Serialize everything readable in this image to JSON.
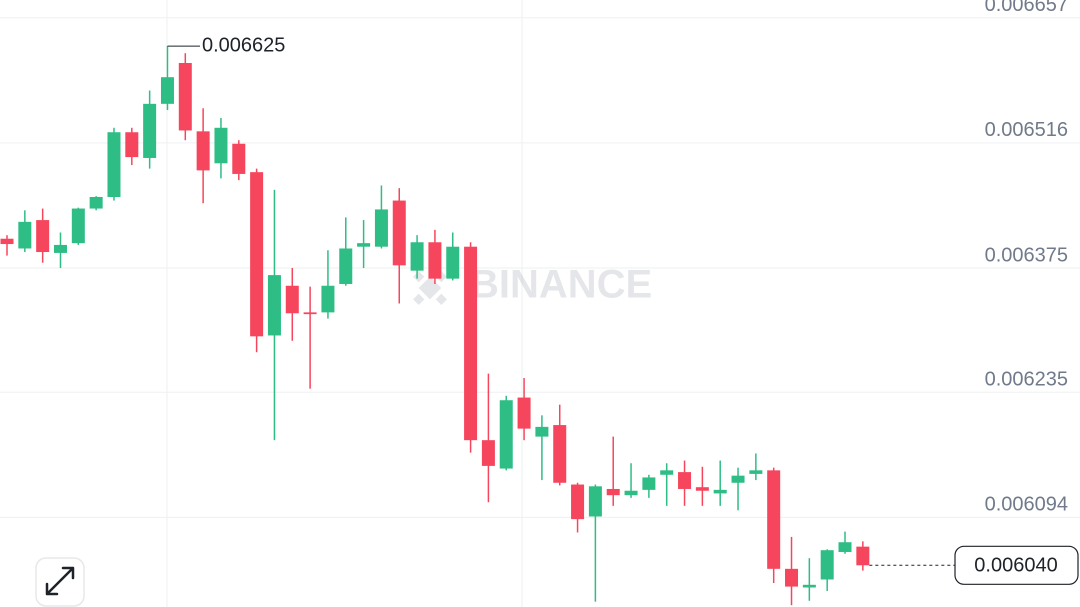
{
  "chart_data": {
    "type": "candlestick",
    "watermark": "BINANCE",
    "up_color": "#2ebd85",
    "down_color": "#f6465d",
    "open": [
      0.006408,
      0.006397,
      0.006429,
      0.006392,
      0.006403,
      0.006442,
      0.006455,
      0.006528,
      0.006499,
      0.00656,
      0.006606,
      0.006529,
      0.006493,
      0.006515,
      0.006483,
      0.006299,
      0.006355,
      0.006325,
      0.006325,
      0.006357,
      0.006399,
      0.006399,
      0.006451,
      0.006372,
      0.006404,
      0.006363,
      0.006399,
      0.006181,
      0.006149,
      0.006229,
      0.006185,
      0.006198,
      0.006131,
      0.006095,
      0.006126,
      0.006119,
      0.006125,
      0.006142,
      0.006145,
      0.006128,
      0.006121,
      0.006133,
      0.006143,
      0.006147,
      0.006036,
      0.006015,
      0.006024,
      0.006055,
      0.006061
    ],
    "high": [
      0.006412,
      0.00644,
      0.006442,
      0.006415,
      0.006443,
      0.006456,
      0.006533,
      0.006533,
      0.006575,
      0.006625,
      0.006617,
      0.006555,
      0.006544,
      0.006519,
      0.006487,
      0.006463,
      0.006375,
      0.006354,
      0.006395,
      0.006432,
      0.006429,
      0.006468,
      0.006465,
      0.006412,
      0.006418,
      0.006415,
      0.006404,
      0.006256,
      0.006231,
      0.006251,
      0.006209,
      0.006221,
      0.006133,
      0.006131,
      0.006185,
      0.006155,
      0.006142,
      0.006155,
      0.006158,
      0.006151,
      0.006158,
      0.00615,
      0.006166,
      0.00615,
      0.006072,
      0.006048,
      0.006058,
      0.006078,
      0.006067
    ],
    "low": [
      0.006389,
      0.006393,
      0.006381,
      0.006375,
      0.006401,
      0.00644,
      0.006451,
      0.006491,
      0.006487,
      0.006553,
      0.006519,
      0.006448,
      0.006476,
      0.006474,
      0.00628,
      0.006181,
      0.006293,
      0.006239,
      0.006318,
      0.006355,
      0.006375,
      0.006397,
      0.006335,
      0.006363,
      0.006357,
      0.006361,
      0.006167,
      0.006111,
      0.006147,
      0.006181,
      0.006136,
      0.00613,
      0.006077,
      0.005999,
      0.006107,
      0.006116,
      0.006116,
      0.006107,
      0.006107,
      0.006107,
      0.006107,
      0.006102,
      0.006136,
      0.00602,
      0.005995,
      0.006,
      0.006011,
      0.006053,
      0.006034
    ],
    "close": [
      0.006402,
      0.006427,
      0.006393,
      0.006401,
      0.006442,
      0.006455,
      0.006528,
      0.0065,
      0.00656,
      0.00659,
      0.00653,
      0.006485,
      0.006533,
      0.006481,
      0.006298,
      0.006367,
      0.006324,
      0.006323,
      0.006355,
      0.006397,
      0.006403,
      0.006441,
      0.006378,
      0.006404,
      0.006363,
      0.006399,
      0.006181,
      0.006152,
      0.006226,
      0.006194,
      0.006196,
      0.006133,
      0.006092,
      0.006129,
      0.006119,
      0.006124,
      0.006139,
      0.006147,
      0.006126,
      0.006124,
      0.006125,
      0.006141,
      0.006147,
      0.006036,
      0.006016,
      0.006018,
      0.006057,
      0.006066,
      0.00604
    ],
    "ylim": [
      0.005993,
      0.006677
    ],
    "yticks": [
      0.006657,
      0.006516,
      0.006375,
      0.006235,
      0.006094
    ],
    "grid": true,
    "high_label": {
      "value": 0.006625,
      "label": "0.006625"
    },
    "last_price": {
      "value": 0.00604,
      "label": "0.006040"
    }
  }
}
